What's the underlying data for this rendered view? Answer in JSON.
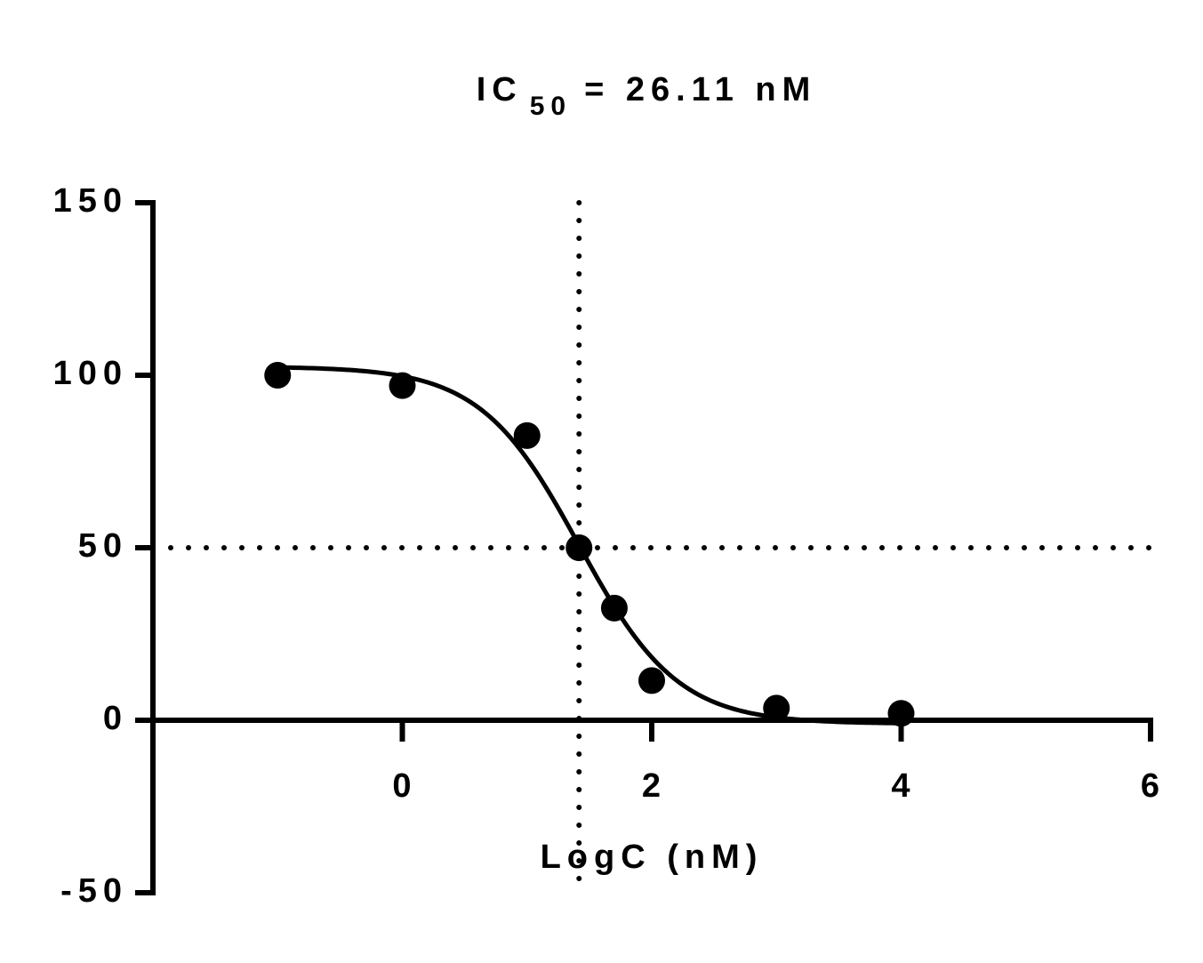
{
  "chart_data": {
    "type": "scatter",
    "title": [
      "IC",
      "50",
      "= 26.11 nM"
    ],
    "x_label": "LogC (nM)",
    "x": [
      -1,
      0,
      1,
      1.417,
      1.7,
      2,
      3,
      4
    ],
    "values": [
      100,
      97,
      82.5,
      50,
      32.5,
      11.5,
      3.5,
      2
    ],
    "color": "#000000",
    "fit": {
      "top": 102.5,
      "bottom": -1,
      "log_ic50": 1.417,
      "hill_slope": 1.1,
      "x_range": [
        -1,
        4
      ]
    },
    "ref_lines": {
      "x": 1.417,
      "y": 50
    },
    "xlim": [
      -2,
      6
    ],
    "xticks": [
      0,
      2,
      4,
      6
    ],
    "ylim": [
      -50,
      150
    ],
    "yticks": [
      -50,
      0,
      50,
      100,
      150
    ],
    "grid": false
  }
}
